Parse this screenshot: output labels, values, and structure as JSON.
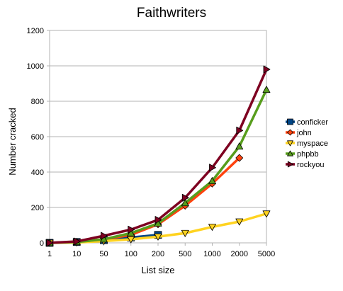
{
  "chart_data": {
    "type": "line",
    "title": "Faithwriters",
    "xlabel": "List size",
    "ylabel": "Number cracked",
    "categories": [
      "1",
      "10",
      "50",
      "100",
      "200",
      "500",
      "1000",
      "2000",
      "5000"
    ],
    "ylim": [
      0,
      1200
    ],
    "yticks": [
      "0",
      "200",
      "400",
      "600",
      "800",
      "1000",
      "1200"
    ],
    "grid": true,
    "legend_position": "right",
    "series": [
      {
        "name": "conficker",
        "color": "#004586",
        "marker": "square",
        "values": [
          0,
          5,
          15,
          30,
          45,
          null,
          null,
          null,
          null
        ]
      },
      {
        "name": "john",
        "color": "#ff420e",
        "marker": "diamond",
        "values": [
          0,
          5,
          20,
          45,
          105,
          210,
          335,
          480,
          null
        ]
      },
      {
        "name": "myspace",
        "color": "#ffd320",
        "marker": "triangle-down",
        "values": [
          0,
          2,
          10,
          20,
          35,
          55,
          90,
          120,
          165
        ]
      },
      {
        "name": "phpbb",
        "color": "#579d1c",
        "marker": "triangle-up",
        "values": [
          0,
          5,
          20,
          55,
          110,
          225,
          350,
          545,
          865
        ]
      },
      {
        "name": "rockyou",
        "color": "#7e0021",
        "marker": "triangle-right",
        "values": [
          0,
          8,
          40,
          75,
          130,
          255,
          425,
          635,
          980
        ]
      }
    ]
  }
}
